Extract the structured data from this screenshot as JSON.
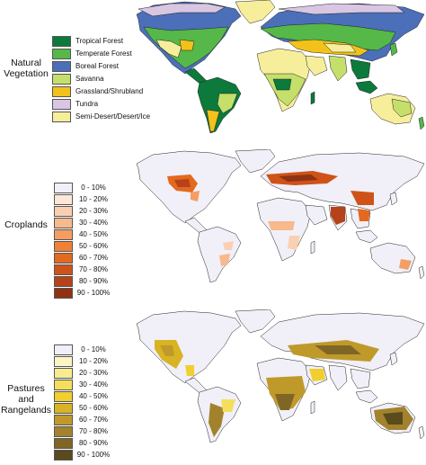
{
  "panels": [
    {
      "title_lines": [
        "Natural",
        "Vegetation"
      ],
      "legend": [
        {
          "label": "Tropical Forest",
          "color": "#0b7a3b"
        },
        {
          "label": "Temperate Forest",
          "color": "#55b848"
        },
        {
          "label": "Boreal Forest",
          "color": "#4b6fb8"
        },
        {
          "label": "Savanna",
          "color": "#c5df6b"
        },
        {
          "label": "Grassland/Shrubland",
          "color": "#f2c21a"
        },
        {
          "label": "Tundra",
          "color": "#d8c6e2"
        },
        {
          "label": "Semi-Desert/Desert/Ice",
          "color": "#f7ee9c"
        }
      ]
    },
    {
      "title_lines": [
        "Croplands"
      ],
      "legend": [
        {
          "label": "0 - 10%",
          "color": "#f1eff8"
        },
        {
          "label": "10 - 20%",
          "color": "#fde8d8"
        },
        {
          "label": "20 - 30%",
          "color": "#fbd0b2"
        },
        {
          "label": "30 - 40%",
          "color": "#f8b98d"
        },
        {
          "label": "40 - 50%",
          "color": "#f59d62"
        },
        {
          "label": "50 - 60%",
          "color": "#f08036"
        },
        {
          "label": "60 - 70%",
          "color": "#e3691f"
        },
        {
          "label": "70 - 80%",
          "color": "#cf5318"
        },
        {
          "label": "80 - 90%",
          "color": "#b54218"
        },
        {
          "label": "90 - 100%",
          "color": "#8f3214"
        }
      ]
    },
    {
      "title_lines": [
        "Pastures",
        "and",
        "Rangelands"
      ],
      "legend": [
        {
          "label": "0 - 10%",
          "color": "#f1eff8"
        },
        {
          "label": "10 - 20%",
          "color": "#fbf5c4"
        },
        {
          "label": "20 - 30%",
          "color": "#f8ec93"
        },
        {
          "label": "30 - 40%",
          "color": "#f4df5c"
        },
        {
          "label": "40 - 50%",
          "color": "#f0cf2f"
        },
        {
          "label": "50 - 60%",
          "color": "#d8b324"
        },
        {
          "label": "60 - 70%",
          "color": "#bf9a2a"
        },
        {
          "label": "70 - 80%",
          "color": "#a2822c"
        },
        {
          "label": "80 - 90%",
          "color": "#7f6626"
        },
        {
          "label": "90 - 100%",
          "color": "#5a4a1c"
        }
      ]
    }
  ]
}
